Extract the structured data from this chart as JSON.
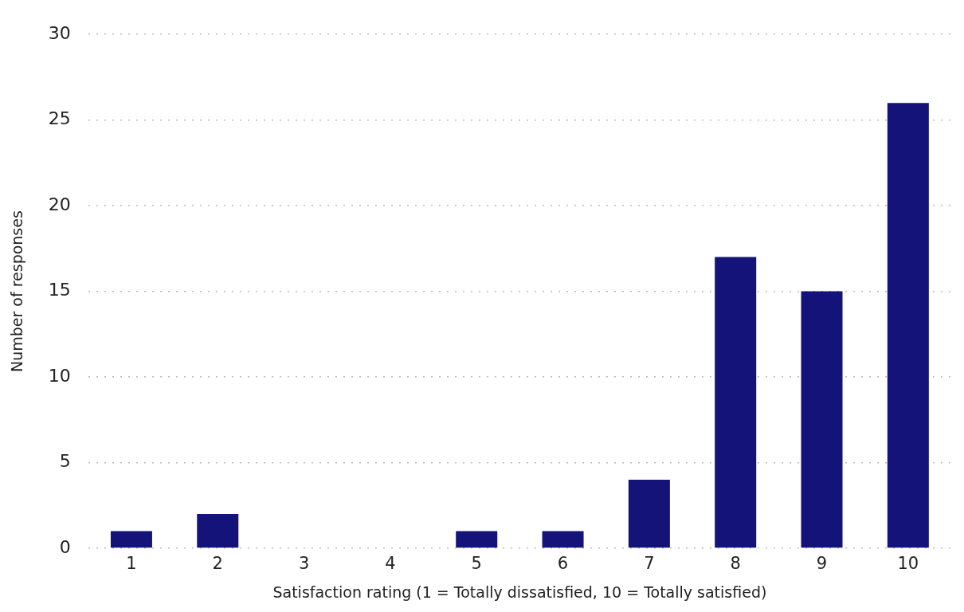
{
  "chart_data": {
    "type": "bar",
    "xlabel": "Satisfaction rating (1 = Totally dissatisfied, 10 = Totally satisfied)",
    "ylabel": "Number of responses",
    "categories": [
      "1",
      "2",
      "3",
      "4",
      "5",
      "6",
      "7",
      "8",
      "9",
      "10"
    ],
    "values": [
      1,
      2,
      0,
      0,
      1,
      1,
      4,
      17,
      15,
      26
    ],
    "color": "#13137a",
    "ylim": [
      0,
      30
    ],
    "yticks": [
      0,
      5,
      10,
      15,
      20,
      25,
      30
    ],
    "grid": "y",
    "legend": false
  }
}
